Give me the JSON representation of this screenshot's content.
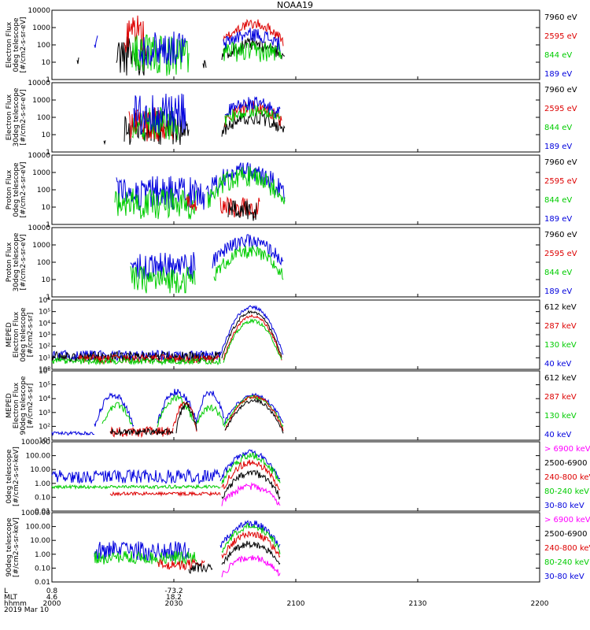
{
  "title": "NOAA19",
  "colors": {
    "black": "#000000",
    "red": "#dd0000",
    "green": "#00cc00",
    "blue": "#0000dd",
    "magenta": "#ff00ff"
  },
  "chart_data": {
    "type": "line",
    "x_ticks": [
      "2000",
      "2030",
      "2100",
      "2130",
      "2200"
    ],
    "footer": {
      "row_labels": [
        "L",
        "MLT",
        "hhmm",
        "2019 Mar 10"
      ],
      "col0": [
        "0.8",
        "4.6",
        "2000"
      ],
      "col1": [
        "-73.2",
        "18.2",
        "2030"
      ]
    },
    "panels": [
      {
        "ylabel": [
          "Electron Flux",
          "0deg telescope",
          "[#/cm2-s-sr-eV]"
        ],
        "yticks": [
          "1",
          "10",
          "100",
          "1000",
          "10000"
        ],
        "legend": [
          {
            "text": "7960 eV",
            "color": "black"
          },
          {
            "text": "2595 eV",
            "color": "red"
          },
          {
            "text": "844 eV",
            "color": "green"
          },
          {
            "text": "189 eV",
            "color": "blue"
          }
        ]
      },
      {
        "ylabel": [
          "Electron Flux",
          "30deg telescope",
          "[#/cm2-s-sr-eV]"
        ],
        "yticks": [
          "1",
          "10",
          "100",
          "1000",
          "10000"
        ],
        "legend": [
          {
            "text": "7960 eV",
            "color": "black"
          },
          {
            "text": "2595 eV",
            "color": "red"
          },
          {
            "text": "844 eV",
            "color": "green"
          },
          {
            "text": "189 eV",
            "color": "blue"
          }
        ]
      },
      {
        "ylabel": [
          "Proton Flux",
          "0deg telescope",
          "[#/cm2-s-sr-eV]"
        ],
        "yticks": [
          "1",
          "10",
          "100",
          "1000",
          "10000"
        ],
        "legend": [
          {
            "text": "7960 eV",
            "color": "black"
          },
          {
            "text": "2595 eV",
            "color": "red"
          },
          {
            "text": "844 eV",
            "color": "green"
          },
          {
            "text": "189 eV",
            "color": "blue"
          }
        ]
      },
      {
        "ylabel": [
          "Proton Flux",
          "30deg telescope",
          "[#/cm2-s-sr-eV]"
        ],
        "yticks": [
          "1",
          "10",
          "100",
          "1000",
          "10000"
        ],
        "legend": [
          {
            "text": "7960 eV",
            "color": "black"
          },
          {
            "text": "2595 eV",
            "color": "red"
          },
          {
            "text": "844 eV",
            "color": "green"
          },
          {
            "text": "189 eV",
            "color": "blue"
          }
        ]
      },
      {
        "ylabel": [
          "MEPED",
          "Electron Flux",
          "0deg telescope",
          "[#/cm2-s-sr]"
        ],
        "yticks": [
          "10⁰",
          "10¹",
          "10²",
          "10³",
          "10⁴",
          "10⁵",
          "10⁶"
        ],
        "legend": [
          {
            "text": "612 keV",
            "color": "black"
          },
          {
            "text": "287 keV",
            "color": "red"
          },
          {
            "text": "130 keV",
            "color": "green"
          },
          {
            "text": "40 keV",
            "color": "blue"
          }
        ]
      },
      {
        "ylabel": [
          "MEPED",
          "Electron Flux",
          "90deg telescope",
          "[#/cm2-s-sr]"
        ],
        "yticks": [
          "10¹",
          "10²",
          "10³",
          "10⁴",
          "10⁵",
          "10⁶"
        ],
        "legend": [
          {
            "text": "612 keV",
            "color": "black"
          },
          {
            "text": "287 keV",
            "color": "red"
          },
          {
            "text": "130 keV",
            "color": "green"
          },
          {
            "text": "40 keV",
            "color": "blue"
          }
        ]
      },
      {
        "ylabel": [
          "0deg telescope",
          "[#/cm2-s-sr-keV]"
        ],
        "yticks": [
          "0.01",
          "0.10",
          "1.00",
          "10.00",
          "100.00",
          "1000.00"
        ],
        "legend": [
          {
            "text": "> 6900 keV",
            "color": "magenta"
          },
          {
            "text": "2500-6900",
            "color": "black"
          },
          {
            "text": "240-800 keV",
            "color": "red"
          },
          {
            "text": "80-240 keV",
            "color": "green"
          },
          {
            "text": "30-80 keV",
            "color": "blue"
          }
        ]
      },
      {
        "ylabel": [
          "90deg telescope",
          "[#/cm2-s-sr-keV]"
        ],
        "yticks": [
          "0.01",
          "0.10",
          "1.00",
          "10.00",
          "100.00",
          "1000.00"
        ],
        "legend": [
          {
            "text": "> 6900 keV",
            "color": "magenta"
          },
          {
            "text": "2500-6900",
            "color": "black"
          },
          {
            "text": "240-800 keV",
            "color": "red"
          },
          {
            "text": "80-240 keV",
            "color": "green"
          },
          {
            "text": "30-80 keV",
            "color": "blue"
          }
        ]
      }
    ]
  }
}
